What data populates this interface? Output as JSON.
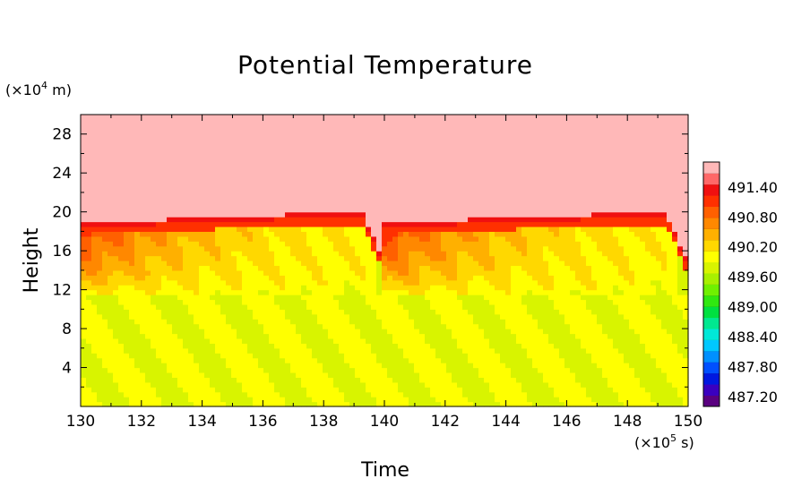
{
  "chart_data": {
    "type": "heatmap",
    "title": "Potential Temperature",
    "xlabel": "Time",
    "ylabel": "Height",
    "x_unit_label": "(×10",
    "x_unit_exp": "5",
    "x_unit_suffix": " s)",
    "y_unit_label": "(×10",
    "y_unit_exp": "4",
    "y_unit_suffix": " m)",
    "xlim": [
      130,
      150
    ],
    "ylim": [
      0,
      30
    ],
    "x_ticks": [
      130,
      132,
      134,
      136,
      138,
      140,
      142,
      144,
      146,
      148,
      150
    ],
    "y_ticks": [
      4,
      8,
      12,
      16,
      20,
      24,
      28
    ],
    "grid": false,
    "colorbar": {
      "labels": [
        "491.40",
        "490.80",
        "490.20",
        "489.60",
        "489.00",
        "488.40",
        "487.80",
        "487.20"
      ],
      "label_values": [
        491.4,
        490.8,
        490.2,
        489.6,
        489.0,
        488.4,
        487.8,
        487.2
      ],
      "min": 487.0,
      "max": 491.9,
      "colors": [
        "#5a0080",
        "#3a00c0",
        "#0018e0",
        "#0050ff",
        "#0090ff",
        "#00c8ff",
        "#00e8d8",
        "#00e890",
        "#00e040",
        "#30e810",
        "#70f000",
        "#a8f000",
        "#d8f400",
        "#ffff00",
        "#ffd800",
        "#ffb000",
        "#ff8800",
        "#ff6000",
        "#ff3000",
        "#f01010",
        "#ff6868",
        "#ffb8b8"
      ]
    },
    "field_description": {
      "background_upper": 491.9,
      "background_lower": 489.9,
      "layer_bottom_height": 11.5,
      "layer_top_height_start": 18.3,
      "layer_top_height_end": 19.2,
      "cycle_period": 10,
      "cycle_starts": [
        130,
        140
      ]
    }
  }
}
